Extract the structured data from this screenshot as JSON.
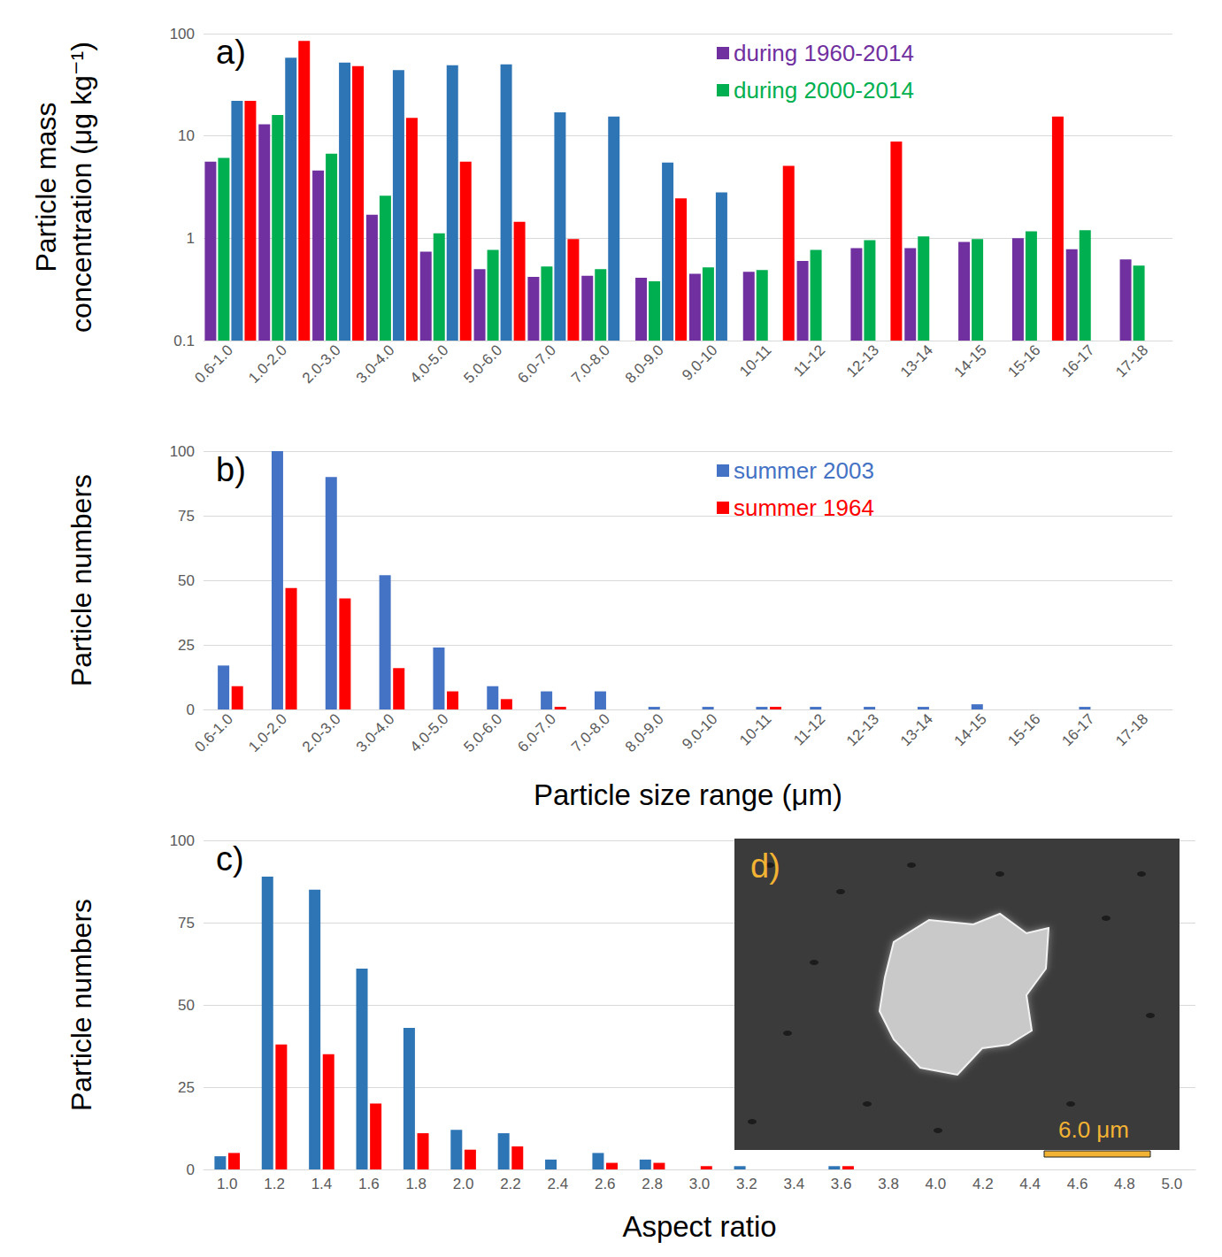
{
  "chart_data": [
    {
      "type": "bar",
      "panel_label": "a)",
      "ylabel": "Particle mass concentration (μg kg⁻¹)",
      "categories": [
        "0.6-1.0",
        "1.0-2.0",
        "2.0-3.0",
        "3.0-4.0",
        "4.0-5.0",
        "5.0-6.0",
        "6.0-7.0",
        "7.0-8.0",
        "8.0-9.0",
        "9.0-10",
        "10-11",
        "11-12",
        "12-13",
        "13-14",
        "14-15",
        "15-16",
        "16-17",
        "17-18"
      ],
      "series": [
        {
          "name": "during 1960-2014",
          "color": "#7030a0",
          "values": [
            5.6,
            13,
            4.6,
            1.7,
            0.74,
            0.5,
            0.42,
            0.43,
            0.41,
            0.45,
            0.47,
            0.6,
            0.8,
            0.8,
            0.92,
            1.0,
            0.78,
            0.62
          ]
        },
        {
          "name": "during 2000-2014",
          "color": "#00b050",
          "values": [
            6.1,
            16,
            6.7,
            2.6,
            1.12,
            0.77,
            0.53,
            0.5,
            0.38,
            0.52,
            0.49,
            0.77,
            0.96,
            1.04,
            0.98,
            1.17,
            1.2,
            0.54
          ]
        },
        {
          "color": "#2e75b6",
          "values": [
            22,
            58,
            52,
            44,
            49,
            50,
            17,
            15.5,
            5.5,
            2.8,
            null,
            null,
            null,
            null,
            null,
            null,
            null,
            null
          ]
        },
        {
          "color": "#ff0000",
          "values": [
            22,
            85,
            48,
            15,
            5.6,
            1.45,
            0.98,
            null,
            2.45,
            null,
            5.1,
            null,
            8.8,
            null,
            null,
            15.5,
            null,
            null
          ]
        }
      ],
      "ylim": [
        0.1,
        100
      ],
      "yticks": [
        0.1,
        1,
        10,
        100
      ],
      "log": "y",
      "grid": true,
      "legend": "upper-right"
    },
    {
      "type": "bar",
      "panel_label": "b)",
      "xlabel": "Particle size range (μm)",
      "ylabel": "Particle numbers",
      "categories": [
        "0.6-1.0",
        "1.0-2.0",
        "2.0-3.0",
        "3.0-4.0",
        "4.0-5.0",
        "5.0-6.0",
        "6.0-7.0",
        "7.0-8.0",
        "8.0-9.0",
        "9.0-10",
        "10-11",
        "11-12",
        "12-13",
        "13-14",
        "14-15",
        "15-16",
        "16-17",
        "17-18"
      ],
      "series": [
        {
          "name": "summer 2003",
          "color": "#4472c4",
          "values": [
            17,
            100,
            90,
            52,
            24,
            9,
            7,
            7,
            1,
            1,
            1,
            1,
            1,
            1,
            2,
            0,
            1,
            0
          ]
        },
        {
          "name": "summer 1964",
          "color": "#ff0000",
          "values": [
            9,
            47,
            43,
            16,
            7,
            4,
            1,
            0,
            0,
            0,
            1,
            0,
            0,
            0,
            0,
            0,
            0,
            0
          ]
        }
      ],
      "ylim": [
        0,
        100
      ],
      "yticks": [
        0,
        25,
        50,
        75,
        100
      ],
      "grid": true,
      "legend": "upper-right"
    },
    {
      "type": "bar",
      "panel_label": "c)",
      "xlabel": "Aspect ratio",
      "ylabel": "Particle numbers",
      "categories": [
        "1.0",
        "1.2",
        "1.4",
        "1.6",
        "1.8",
        "2.0",
        "2.2",
        "2.4",
        "2.6",
        "2.8",
        "3.0",
        "3.2",
        "3.4",
        "3.6",
        "3.8",
        "4.0",
        "4.2",
        "4.4",
        "4.6",
        "4.8",
        "5.0"
      ],
      "series": [
        {
          "color": "#2e75b6",
          "values": [
            4,
            89,
            85,
            61,
            43,
            12,
            11,
            3,
            5,
            3,
            0,
            1,
            0,
            1,
            0,
            0,
            0,
            0,
            0,
            0,
            0
          ]
        },
        {
          "color": "#ff0000",
          "values": [
            5,
            38,
            35,
            20,
            11,
            6,
            7,
            0,
            2,
            2,
            1,
            0,
            0,
            1,
            0,
            0,
            0,
            0,
            0,
            0,
            0
          ]
        }
      ],
      "ylim": [
        0,
        100
      ],
      "yticks": [
        0,
        25,
        50,
        75,
        100
      ],
      "grid": true,
      "inset": {
        "label": "d)",
        "scale_bar": "6.0 μm"
      }
    }
  ]
}
